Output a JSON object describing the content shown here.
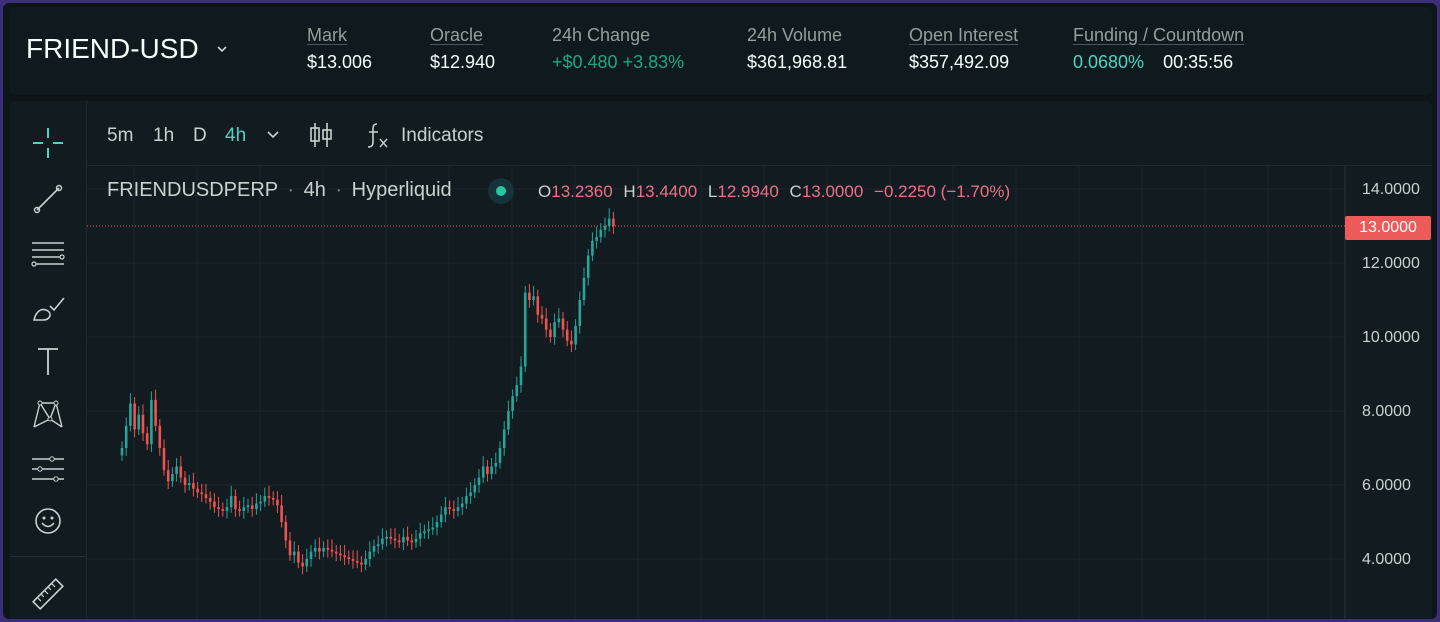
{
  "header": {
    "market": "FRIEND-USD",
    "stats": [
      {
        "label": "Mark",
        "value": "$13.006"
      },
      {
        "label": "Oracle",
        "value": "$12.940"
      },
      {
        "label": "24h Change",
        "value": "+$0.480 +3.83%"
      },
      {
        "label": "24h Volume",
        "value": "$361,968.81"
      },
      {
        "label": "Open Interest",
        "value": "$357,492.09"
      },
      {
        "label": "Funding / Countdown",
        "value": "0.0680%",
        "value2": "00:35:56"
      }
    ]
  },
  "toolbar": {
    "timeframes": [
      "5m",
      "1h",
      "D",
      "4h"
    ],
    "active_timeframe": "4h",
    "indicators_label": "Indicators"
  },
  "legend": {
    "symbol": "FRIENDUSDPERP",
    "interval": "4h",
    "venue": "Hyperliquid",
    "sep": "·"
  },
  "ohlc": {
    "o_label": "O",
    "o": "13.2360",
    "h_label": "H",
    "h": "13.4400",
    "l_label": "L",
    "l": "12.9940",
    "c_label": "C",
    "c": "13.0000",
    "change": "−0.2250 (−1.70%)"
  },
  "left_tools": [
    "crosshair-icon",
    "trend-line-icon",
    "horizontal-lines-icon",
    "brush-icon",
    "text-icon",
    "pattern-icon",
    "projection-icon",
    "emoji-icon",
    "ruler-icon"
  ],
  "colors": {
    "up": "#26a69a",
    "down": "#ef5350",
    "accent": "#50d2c1",
    "last_price": "#ed5a5a"
  },
  "chart_data": {
    "type": "candlestick",
    "y_ticks": [
      "14.0000",
      "12.0000",
      "10.0000",
      "8.0000",
      "6.0000",
      "4.0000"
    ],
    "ylim": [
      3.5,
      14.5
    ],
    "last_price_label": "13.0000",
    "close_series": [
      7.0,
      7.6,
      8.2,
      7.5,
      7.9,
      7.4,
      7.1,
      8.3,
      7.6,
      7.0,
      6.4,
      6.1,
      6.3,
      6.5,
      6.2,
      6.0,
      6.05,
      5.9,
      5.8,
      5.75,
      5.65,
      5.55,
      5.4,
      5.35,
      5.3,
      5.4,
      5.7,
      5.35,
      5.3,
      5.4,
      5.45,
      5.35,
      5.5,
      5.55,
      5.7,
      5.65,
      5.6,
      5.45,
      5.0,
      4.5,
      4.1,
      4.2,
      3.9,
      3.8,
      4.0,
      4.2,
      4.3,
      4.2,
      4.3,
      4.25,
      4.2,
      4.15,
      4.1,
      4.05,
      4.0,
      3.95,
      3.9,
      3.85,
      4.0,
      4.2,
      4.35,
      4.4,
      4.55,
      4.6,
      4.55,
      4.5,
      4.45,
      4.6,
      4.5,
      4.45,
      4.55,
      4.7,
      4.75,
      4.8,
      4.85,
      5.0,
      5.2,
      5.4,
      5.35,
      5.3,
      5.4,
      5.5,
      5.7,
      5.8,
      6.0,
      6.2,
      6.5,
      6.3,
      6.5,
      6.6,
      7.0,
      7.5,
      8.0,
      8.4,
      8.7,
      9.2,
      11.2,
      11.0,
      11.1,
      10.6,
      10.5,
      10.2,
      10.0,
      10.4,
      10.5,
      10.2,
      9.9,
      9.8,
      10.3,
      11.0,
      11.6,
      12.2,
      12.6,
      12.7,
      12.9,
      13.0,
      13.2,
      13.0
    ]
  }
}
